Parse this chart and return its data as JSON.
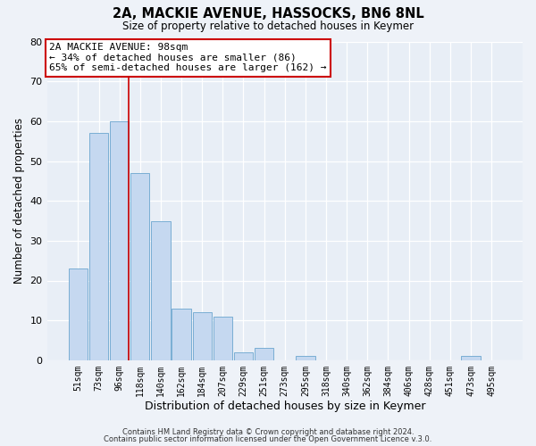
{
  "title1": "2A, MACKIE AVENUE, HASSOCKS, BN6 8NL",
  "title2": "Size of property relative to detached houses in Keymer",
  "xlabel": "Distribution of detached houses by size in Keymer",
  "ylabel": "Number of detached properties",
  "bar_labels": [
    "51sqm",
    "73sqm",
    "96sqm",
    "118sqm",
    "140sqm",
    "162sqm",
    "184sqm",
    "207sqm",
    "229sqm",
    "251sqm",
    "273sqm",
    "295sqm",
    "318sqm",
    "340sqm",
    "362sqm",
    "384sqm",
    "406sqm",
    "428sqm",
    "451sqm",
    "473sqm",
    "495sqm"
  ],
  "bar_values": [
    23,
    57,
    60,
    47,
    35,
    13,
    12,
    11,
    2,
    3,
    0,
    1,
    0,
    0,
    0,
    0,
    0,
    0,
    0,
    1,
    0
  ],
  "bar_color": "#c5d8f0",
  "bar_edgecolor": "#7aaed4",
  "vline_color": "#cc0000",
  "ylim": [
    0,
    80
  ],
  "yticks": [
    0,
    10,
    20,
    30,
    40,
    50,
    60,
    70,
    80
  ],
  "annotation_title": "2A MACKIE AVENUE: 98sqm",
  "annotation_line1": "← 34% of detached houses are smaller (86)",
  "annotation_line2": "65% of semi-detached houses are larger (162) →",
  "annotation_box_color": "#cc0000",
  "footnote1": "Contains HM Land Registry data © Crown copyright and database right 2024.",
  "footnote2": "Contains public sector information licensed under the Open Government Licence v.3.0.",
  "bg_color": "#eef2f8",
  "plot_bg_color": "#e8eef6"
}
